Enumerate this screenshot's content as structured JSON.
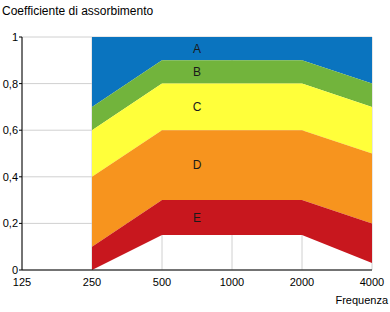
{
  "chart_data": {
    "type": "area_range",
    "title": "Coefficiente di assorbimento",
    "x_label": "Frequenza",
    "categories": [
      "125",
      "250",
      "500",
      "1000",
      "2000",
      "4000"
    ],
    "ylim": [
      0,
      1
    ],
    "yticks": [
      0,
      {
        "value": 0.2,
        "label": "0,2"
      },
      {
        "value": 0.4,
        "label": "0,4"
      },
      {
        "value": 0.6,
        "label": "0,6"
      },
      {
        "value": 0.8,
        "label": "0,8"
      },
      1
    ],
    "grid": true,
    "series": [
      {
        "name": "A",
        "color": "#0a74bf",
        "low": [
          null,
          0.7,
          0.9,
          0.9,
          0.9,
          0.8
        ],
        "high": [
          null,
          1,
          1,
          1,
          1,
          1
        ]
      },
      {
        "name": "B",
        "color": "#72b43c",
        "low": [
          null,
          0.6,
          0.8,
          0.8,
          0.8,
          0.7
        ],
        "high": [
          null,
          0.7,
          0.9,
          0.9,
          0.9,
          0.8
        ]
      },
      {
        "name": "C",
        "color": "#ffff3a",
        "low": [
          null,
          0.4,
          0.6,
          0.6,
          0.6,
          0.5
        ],
        "high": [
          null,
          0.6,
          0.8,
          0.8,
          0.8,
          0.7
        ]
      },
      {
        "name": "D",
        "color": "#f7941e",
        "low": [
          null,
          0.1,
          0.3,
          0.3,
          0.3,
          0.2
        ],
        "high": [
          null,
          0.4,
          0.6,
          0.6,
          0.6,
          0.5
        ]
      },
      {
        "name": "E",
        "color": "#c8171e",
        "low": [
          null,
          0,
          0.15,
          0.15,
          0.15,
          0.03
        ],
        "high": [
          null,
          0.1,
          0.3,
          0.3,
          0.3,
          0.2
        ]
      }
    ]
  }
}
